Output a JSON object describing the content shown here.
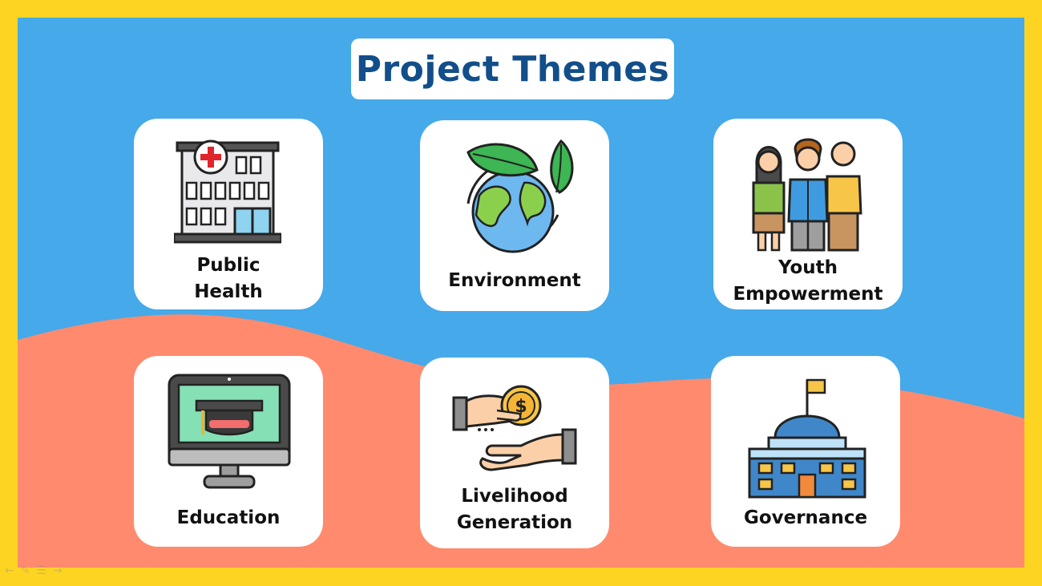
{
  "slide": {
    "title": "Project Themes",
    "colors": {
      "frame": "#FDD422",
      "sky": "#45A9EA",
      "wave": "#FF8A6E",
      "title_text": "#124E8A"
    },
    "themes": [
      {
        "label": "Public Health",
        "icon": "hospital-icon"
      },
      {
        "label": "Environment",
        "icon": "globe-leaves-icon"
      },
      {
        "label": "Youth Empowerment",
        "icon": "people-group-icon"
      },
      {
        "label": "Education",
        "icon": "computer-graduation-cap-icon"
      },
      {
        "label": "Livelihood Generation",
        "icon": "hand-coin-icon"
      },
      {
        "label": "Governance",
        "icon": "government-building-icon"
      }
    ],
    "nav_icons": [
      "arrow-left-icon",
      "pen-icon",
      "menu-icon",
      "arrow-right-icon"
    ]
  }
}
